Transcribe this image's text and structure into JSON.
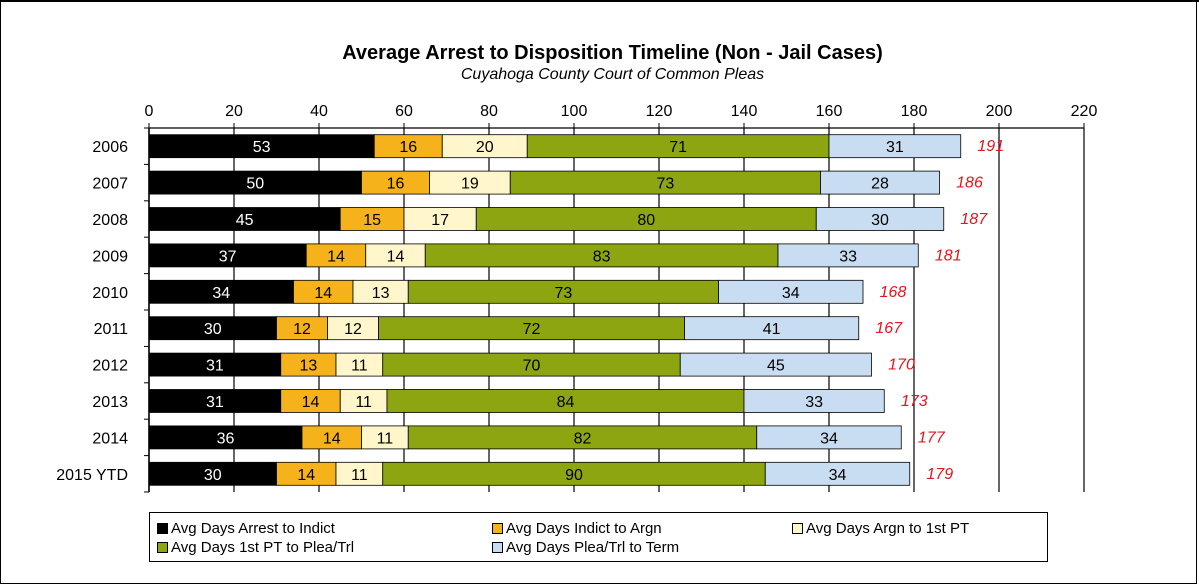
{
  "chart_data": {
    "type": "bar",
    "orientation": "horizontal",
    "stacked": true,
    "title": "Average Arrest to Disposition Timeline (Non - Jail Cases)",
    "subtitle": "Cuyahoga County Court of Common Pleas",
    "categories": [
      "2006",
      "2007",
      "2008",
      "2009",
      "2010",
      "2011",
      "2012",
      "2013",
      "2014",
      "2015 YTD"
    ],
    "series": [
      {
        "name": "Avg Days Arrest to Indict",
        "color": "#000000",
        "label_color": "#ffffff",
        "values": [
          53,
          50,
          45,
          37,
          34,
          30,
          31,
          31,
          36,
          30
        ]
      },
      {
        "name": "Avg Days Indict to Argn",
        "color": "#f5b21b",
        "label_color": "#000000",
        "values": [
          16,
          16,
          15,
          14,
          14,
          12,
          13,
          14,
          14,
          14
        ]
      },
      {
        "name": "Avg Days Argn to 1st PT",
        "color": "#fff6cc",
        "label_color": "#000000",
        "values": [
          20,
          19,
          17,
          14,
          13,
          12,
          11,
          11,
          11,
          11
        ]
      },
      {
        "name": "Avg Days 1st PT to Plea/Trl",
        "color": "#8ea512",
        "label_color": "#000000",
        "values": [
          71,
          73,
          80,
          83,
          73,
          72,
          70,
          84,
          82,
          90
        ]
      },
      {
        "name": "Avg Days Plea/Trl to Term",
        "color": "#c9ddf2",
        "label_color": "#000000",
        "values": [
          31,
          28,
          30,
          33,
          34,
          41,
          45,
          33,
          34,
          34
        ]
      }
    ],
    "totals": [
      "191",
      "186",
      "187",
      "181",
      "168",
      "167",
      "170",
      "173",
      "177",
      "179"
    ],
    "total_color": "#e8141b",
    "x_ticks": [
      "0",
      "20",
      "40",
      "60",
      "80",
      "100",
      "120",
      "140",
      "160",
      "180",
      "200",
      "220"
    ],
    "xlim": [
      0,
      220
    ],
    "axis_position": "top",
    "grid": "vertical",
    "legend_position": "bottom"
  }
}
